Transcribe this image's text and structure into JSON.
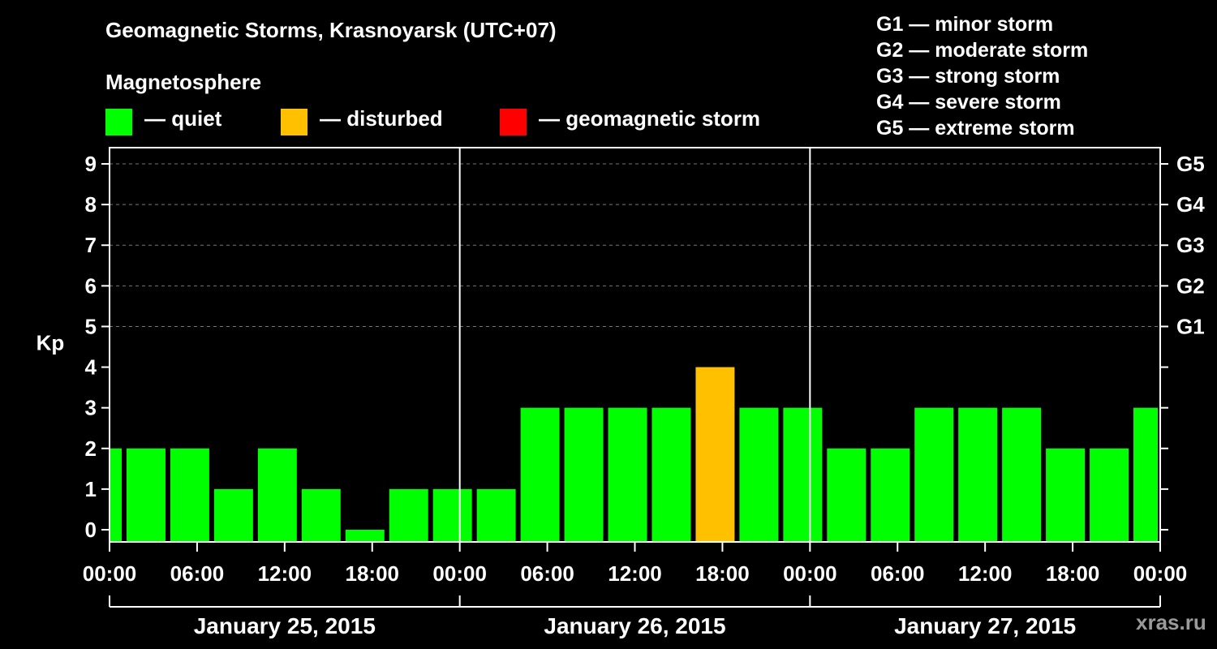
{
  "header": {
    "title": "Geomagnetic Storms, Krasnoyarsk (UTC+07)",
    "subtitle": "Magnetosphere"
  },
  "legend": {
    "items": [
      {
        "label": "— quiet",
        "color": "#00ff00"
      },
      {
        "label": "— disturbed",
        "color": "#ffc000"
      },
      {
        "label": "— geomagnetic storm",
        "color": "#ff0000"
      }
    ]
  },
  "storm_scale": [
    "G1 — minor storm",
    "G2 — moderate storm",
    "G3 — strong storm",
    "G4 — severe storm",
    "G5 — extreme storm"
  ],
  "watermark": "xras.ru",
  "chart_data": {
    "type": "bar",
    "title": "Geomagnetic Storms, Krasnoyarsk (UTC+07)",
    "xlabel": "",
    "ylabel": "Kp",
    "ylim": [
      -0.3,
      9.4
    ],
    "yticks": [
      0,
      1,
      2,
      3,
      4,
      5,
      6,
      7,
      8,
      9
    ],
    "right_axis_labels": [
      {
        "kp": 5,
        "label": "G1"
      },
      {
        "kp": 6,
        "label": "G2"
      },
      {
        "kp": 7,
        "label": "G3"
      },
      {
        "kp": 8,
        "label": "G4"
      },
      {
        "kp": 9,
        "label": "G5"
      }
    ],
    "grid": true,
    "x_range_hours": [
      0,
      72
    ],
    "x_tick_labels": [
      "00:00",
      "06:00",
      "12:00",
      "18:00",
      "00:00",
      "06:00",
      "12:00",
      "18:00",
      "00:00",
      "06:00",
      "12:00",
      "18:00",
      "00:00"
    ],
    "days": [
      "January 25, 2015",
      "January 26, 2015",
      "January 27, 2015"
    ],
    "bin_start_hours": [
      -2,
      1,
      4,
      7,
      10,
      13,
      16,
      19,
      22,
      25,
      28,
      31,
      34,
      37,
      40,
      43,
      46,
      49,
      52,
      55,
      58,
      61,
      64,
      67,
      70
    ],
    "values": [
      2,
      2,
      2,
      1,
      2,
      1,
      0,
      1,
      1,
      1,
      3,
      3,
      3,
      3,
      4,
      3,
      3,
      2,
      2,
      3,
      3,
      3,
      2,
      2,
      3
    ],
    "thresholds": {
      "quiet_below": 4,
      "disturbed_below": 5
    },
    "colors": {
      "quiet": "#00ff00",
      "disturbed": "#ffc000",
      "storm": "#ff0000"
    }
  }
}
